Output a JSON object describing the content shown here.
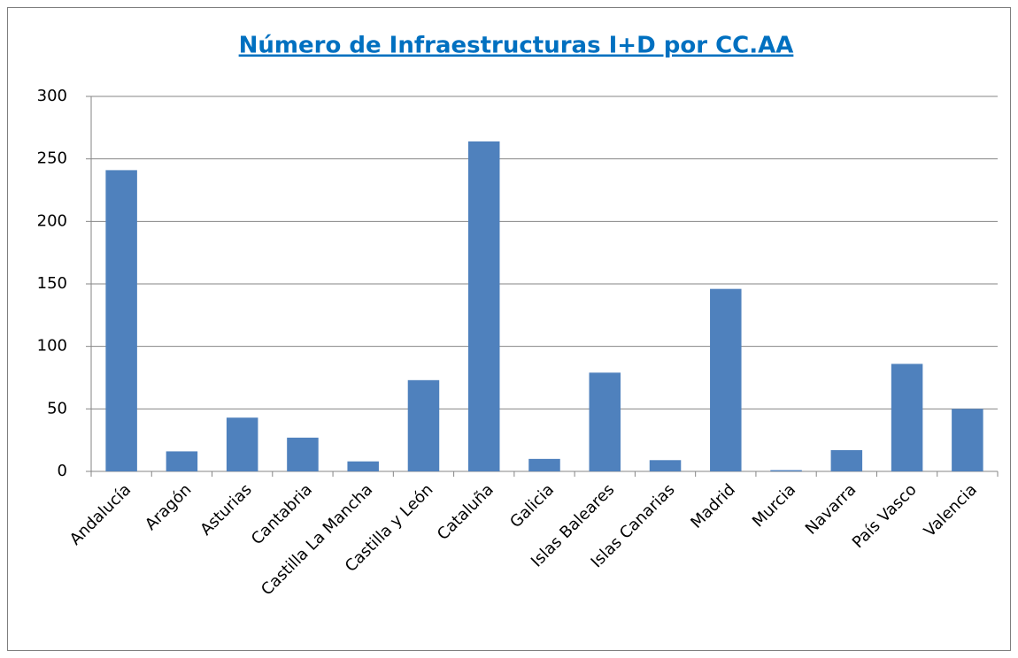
{
  "chart_data": {
    "type": "bar",
    "title": "Número de Infraestructuras I+D por CC.AA",
    "categories": [
      "Andalucía",
      "Aragón",
      "Asturias",
      "Cantabria",
      "Castilla La Mancha",
      "Castilla y León",
      "Cataluña",
      "Galicia",
      "Islas Baleares",
      "Islas Canarias",
      "Madrid",
      "Murcia",
      "Navarra",
      "País Vasco",
      "Valencia"
    ],
    "values": [
      241,
      16,
      43,
      27,
      8,
      73,
      264,
      10,
      79,
      9,
      146,
      1,
      17,
      86,
      50
    ],
    "color": "#4f81bd",
    "ylim": [
      0,
      300
    ],
    "yticks": [
      0,
      50,
      100,
      150,
      200,
      250,
      300
    ],
    "grid": true
  }
}
